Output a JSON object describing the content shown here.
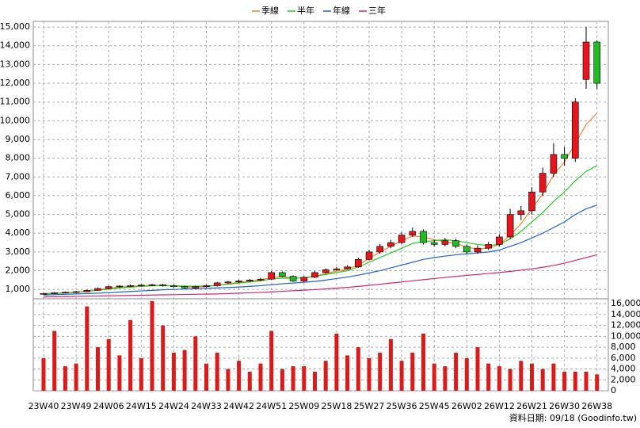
{
  "chart_data": {
    "type": "candlestick",
    "legend": [
      {
        "name": "季線",
        "color": "#ff7f27"
      },
      {
        "name": "半年",
        "color": "#22cc22"
      },
      {
        "name": "年線",
        "color": "#1f5fd6"
      },
      {
        "name": "三年",
        "color": "#d6246e"
      }
    ],
    "categories": [
      "23W40",
      null,
      null,
      "23W49",
      null,
      null,
      "24W06",
      null,
      null,
      "24W15",
      null,
      null,
      "24W24",
      null,
      null,
      "24W33",
      null,
      null,
      "24W42",
      null,
      null,
      "24W51",
      null,
      null,
      "25W09",
      null,
      null,
      "25W18",
      null,
      null,
      "25W27",
      null,
      null,
      "25W36",
      null,
      null,
      "25W45",
      null,
      null,
      "26W02",
      null,
      null,
      "26W12",
      null,
      null,
      "26W21",
      null,
      null,
      "26W30",
      null,
      null,
      "26W38"
    ],
    "open": [
      760,
      780,
      820,
      850,
      880,
      950,
      1050,
      1150,
      1180,
      1200,
      1230,
      1250,
      1200,
      1150,
      1080,
      1150,
      1200,
      1350,
      1400,
      1450,
      1500,
      1550,
      1900,
      1700,
      1450,
      1650,
      1900,
      2050,
      2100,
      2200,
      2600,
      3000,
      3300,
      3500,
      3900,
      4100,
      3500,
      3400,
      3600,
      3300,
      3000,
      3200,
      3400,
      3800,
      5000,
      5200,
      6200,
      7200,
      8200,
      8000,
      12200,
      14200
    ],
    "high": [
      820,
      860,
      890,
      920,
      990,
      1100,
      1200,
      1230,
      1260,
      1280,
      1300,
      1300,
      1250,
      1200,
      1200,
      1250,
      1400,
      1460,
      1510,
      1560,
      1620,
      1980,
      1960,
      1750,
      1720,
      1980,
      2130,
      2200,
      2300,
      2700,
      3120,
      3430,
      3640,
      4050,
      4300,
      4200,
      3650,
      3750,
      3700,
      3400,
      3350,
      3550,
      3950,
      5300,
      5450,
      6450,
      7500,
      8800,
      8600,
      11200,
      15000,
      14300
    ],
    "low": [
      730,
      750,
      790,
      820,
      850,
      920,
      1010,
      1100,
      1130,
      1150,
      1180,
      1150,
      1100,
      1030,
      1040,
      1100,
      1150,
      1300,
      1350,
      1400,
      1450,
      1500,
      1650,
      1400,
      1400,
      1600,
      1850,
      2000,
      2050,
      2150,
      2550,
      2900,
      3200,
      3400,
      3800,
      3400,
      3300,
      3300,
      3200,
      2900,
      2900,
      3100,
      3300,
      3700,
      4700,
      5000,
      6000,
      7000,
      7600,
      7800,
      11700,
      11700
    ],
    "close": [
      780,
      820,
      850,
      880,
      950,
      1050,
      1150,
      1180,
      1200,
      1230,
      1250,
      1200,
      1150,
      1080,
      1150,
      1200,
      1350,
      1400,
      1450,
      1500,
      1550,
      1900,
      1700,
      1450,
      1650,
      1900,
      2050,
      2100,
      2200,
      2600,
      3000,
      3300,
      3500,
      3900,
      4100,
      3500,
      3400,
      3600,
      3300,
      3000,
      3200,
      3400,
      3800,
      5000,
      5200,
      6200,
      7200,
      8200,
      8000,
      11000,
      14200,
      12000
    ],
    "series": [
      {
        "name": "季線",
        "color": "#ff7f27",
        "values": [
          780,
          800,
          830,
          860,
          910,
          980,
          1060,
          1120,
          1170,
          1200,
          1220,
          1220,
          1190,
          1140,
          1120,
          1150,
          1220,
          1300,
          1380,
          1440,
          1500,
          1650,
          1680,
          1620,
          1600,
          1700,
          1850,
          1980,
          2080,
          2300,
          2650,
          3000,
          3300,
          3600,
          3850,
          3800,
          3650,
          3550,
          3450,
          3250,
          3150,
          3200,
          3400,
          3900,
          4500,
          5300,
          6100,
          7100,
          7800,
          8800,
          9800,
          10400
        ]
      },
      {
        "name": "半年",
        "color": "#22cc22",
        "values": [
          750,
          780,
          810,
          850,
          900,
          960,
          1020,
          1080,
          1120,
          1160,
          1190,
          1200,
          1200,
          1180,
          1170,
          1180,
          1220,
          1280,
          1340,
          1400,
          1460,
          1560,
          1600,
          1600,
          1620,
          1700,
          1800,
          1900,
          2000,
          2200,
          2450,
          2700,
          2950,
          3200,
          3450,
          3550,
          3600,
          3650,
          3600,
          3500,
          3400,
          3350,
          3400,
          3700,
          4100,
          4600,
          5100,
          5700,
          6200,
          6800,
          7300,
          7600
        ]
      },
      {
        "name": "年線",
        "color": "#1f5fd6",
        "values": [
          700,
          720,
          740,
          760,
          780,
          800,
          830,
          860,
          890,
          920,
          950,
          980,
          1000,
          1020,
          1040,
          1060,
          1080,
          1100,
          1130,
          1160,
          1200,
          1250,
          1300,
          1340,
          1380,
          1430,
          1500,
          1580,
          1660,
          1760,
          1880,
          2000,
          2150,
          2300,
          2450,
          2600,
          2700,
          2780,
          2850,
          2900,
          2950,
          3000,
          3100,
          3300,
          3500,
          3750,
          4000,
          4300,
          4600,
          5000,
          5300,
          5500
        ]
      },
      {
        "name": "三年",
        "color": "#d6246e",
        "values": [
          600,
          610,
          620,
          630,
          640,
          650,
          660,
          670,
          680,
          690,
          700,
          710,
          720,
          730,
          740,
          750,
          760,
          780,
          800,
          820,
          840,
          870,
          900,
          930,
          960,
          990,
          1030,
          1070,
          1110,
          1160,
          1220,
          1280,
          1340,
          1400,
          1460,
          1520,
          1580,
          1640,
          1700,
          1750,
          1800,
          1850,
          1900,
          1960,
          2030,
          2100,
          2180,
          2280,
          2400,
          2550,
          2700,
          2850
        ]
      }
    ],
    "volume": [
      6000,
      11000,
      4500,
      5000,
      15500,
      8000,
      9500,
      6500,
      13000,
      6000,
      16500,
      12000,
      7000,
      7500,
      10000,
      5000,
      7000,
      4000,
      5500,
      3500,
      5000,
      11000,
      4000,
      4500,
      4500,
      3500,
      5500,
      10500,
      6500,
      8000,
      6000,
      7000,
      9500,
      5500,
      7000,
      10500,
      5000,
      4500,
      7000,
      6000,
      8000,
      5000,
      4500,
      4000,
      5500,
      5000,
      4000,
      5000,
      3500,
      3500,
      3500,
      3000
    ],
    "up_color": "#e8161c",
    "down_color": "#22bb22",
    "volume_color": "#dd1a1a",
    "ylim": [
      500,
      15300
    ],
    "yticks": [
      {
        "value": 1000,
        "label": "1,000"
      },
      {
        "value": 2000,
        "label": "2,000"
      },
      {
        "value": 3000,
        "label": "3,000"
      },
      {
        "value": 4000,
        "label": "4,000"
      },
      {
        "value": 5000,
        "label": "5,000"
      },
      {
        "value": 6000,
        "label": "6,000"
      },
      {
        "value": 7000,
        "label": "7,000"
      },
      {
        "value": 8000,
        "label": "8,000"
      },
      {
        "value": 9000,
        "label": "9,000"
      },
      {
        "value": 10000,
        "label": "10,000"
      },
      {
        "value": 11000,
        "label": "11,000"
      },
      {
        "value": 12000,
        "label": "12,000"
      },
      {
        "value": 13000,
        "label": "13,000"
      },
      {
        "value": 14000,
        "label": "14,000"
      },
      {
        "value": 15000,
        "label": "15,000"
      }
    ],
    "y2lim": [
      0,
      16900
    ],
    "y2ticks": [
      0,
      {
        "value": 2000,
        "label": "2,000"
      },
      {
        "value": 4000,
        "label": "4,000"
      },
      {
        "value": 6000,
        "label": "6,000"
      },
      {
        "value": 8000,
        "label": "8,000"
      },
      {
        "value": 10000,
        "label": "10,000"
      },
      {
        "value": 12000,
        "label": "12,000"
      },
      {
        "value": 14000,
        "label": "14,000"
      },
      {
        "value": 16000,
        "label": "16,000"
      }
    ],
    "grid": true,
    "footer": "資料日期: 09/18 (Goodinfo.tw)"
  }
}
